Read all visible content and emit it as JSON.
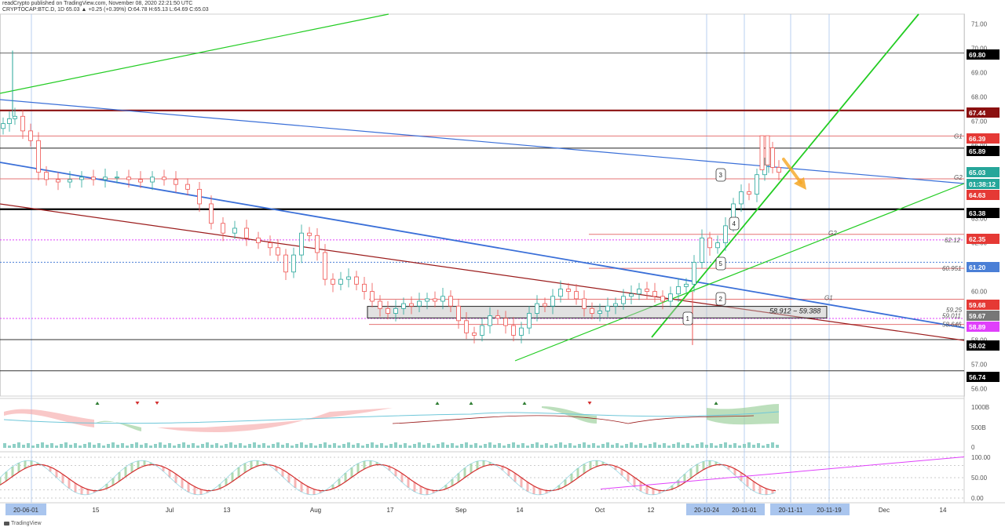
{
  "header": {
    "line1": "readCrypto published on TradingView.com, November 08, 2020 22:21:50 UTC",
    "line2": "CRYPTOCAP:BTC.D, 1D 65.03 ▲ +0.25 (+0.39%) O:64.78 H:65.13 L:64.69 C:65.03"
  },
  "footer": {
    "logo_text": "TradingView"
  },
  "chart_data": {
    "type": "candlestick",
    "y_axis": {
      "range": [
        55.7,
        71.4
      ],
      "ticks": [
        "56.00",
        "57.00",
        "58.00",
        "59.00",
        "60.00",
        "61.00",
        "62.00",
        "63.00",
        "64.00",
        "65.00",
        "66.00",
        "67.00",
        "68.00",
        "69.00",
        "70.00",
        "71.00"
      ]
    },
    "x_axis": {
      "ticks": [
        {
          "label": "20-06-01",
          "highlight": true
        },
        {
          "label": "15",
          "highlight": false
        },
        {
          "label": "Jul",
          "highlight": false
        },
        {
          "label": "13",
          "highlight": false
        },
        {
          "label": "Aug",
          "highlight": false
        },
        {
          "label": "17",
          "highlight": false
        },
        {
          "label": "Sep",
          "highlight": false
        },
        {
          "label": "14",
          "highlight": false
        },
        {
          "label": "Oct",
          "highlight": false
        },
        {
          "label": "12",
          "highlight": false
        },
        {
          "label": "20-10-24",
          "highlight": true
        },
        {
          "label": "20-11-01",
          "highlight": true
        },
        {
          "label": "20-11-11",
          "highlight": true
        },
        {
          "label": "20-11-19",
          "highlight": true
        },
        {
          "label": "Dec",
          "highlight": false
        },
        {
          "label": "14",
          "highlight": false
        }
      ]
    },
    "price_tags": [
      {
        "value": "69.80",
        "color": "#000000"
      },
      {
        "value": "67.44",
        "color": "#8b1010"
      },
      {
        "value": "66.39",
        "color": "#e53935"
      },
      {
        "value": "65.89",
        "color": "#000000"
      },
      {
        "value": "65.03",
        "color": "#26a69a"
      },
      {
        "value": "01:38:12",
        "color": "#26a69a"
      },
      {
        "value": "64.63",
        "color": "#e53935"
      },
      {
        "value": "63.38",
        "color": "#000000"
      },
      {
        "value": "62.35",
        "color": "#e53935"
      },
      {
        "value": "61.20",
        "color": "#4a7fd6"
      },
      {
        "value": "59.68",
        "color": "#e53935"
      },
      {
        "value": "59.67",
        "color": "#777777"
      },
      {
        "value": "58.89",
        "color": "#e040fb"
      },
      {
        "value": "58.02",
        "color": "#000000"
      },
      {
        "value": "56.74",
        "color": "#000000"
      }
    ],
    "horizontal_levels": [
      {
        "value": 69.8,
        "color": "#666666",
        "style": "solid"
      },
      {
        "value": 67.44,
        "color": "#8b1010",
        "style": "thick"
      },
      {
        "value": 66.39,
        "color": "#e57373",
        "style": "solid"
      },
      {
        "value": 65.89,
        "color": "#222222",
        "style": "solid"
      },
      {
        "value": 64.63,
        "color": "#e57373",
        "style": "solid"
      },
      {
        "value": 63.38,
        "color": "#000000",
        "style": "thick"
      },
      {
        "value": 62.35,
        "color": "#e57373",
        "style": "solid"
      },
      {
        "value": 62.12,
        "color": "#e040fb",
        "style": "dotted"
      },
      {
        "value": 61.2,
        "color": "#4a7fd6",
        "style": "dotted"
      },
      {
        "value": 60.951,
        "color": "#e57373",
        "style": "solid"
      },
      {
        "value": 59.68,
        "color": "#e57373",
        "style": "solid"
      },
      {
        "value": 58.89,
        "color": "#e040fb",
        "style": "dotted"
      },
      {
        "value": 58.646,
        "color": "#e57373",
        "style": "solid"
      },
      {
        "value": 58.02,
        "color": "#333333",
        "style": "solid"
      },
      {
        "value": 56.74,
        "color": "#333333",
        "style": "solid"
      }
    ],
    "level_labels": [
      {
        "text": "G1",
        "value": 66.39
      },
      {
        "text": "G2",
        "value": 64.7
      },
      {
        "text": "62.12",
        "value": 62.12
      },
      {
        "text": "G2",
        "value": 62.4
      },
      {
        "text": "60.951",
        "value": 60.951
      },
      {
        "text": "G1",
        "value": 59.75
      },
      {
        "text": "59.25",
        "value": 59.25
      },
      {
        "text": "59.011",
        "value": 59.011
      },
      {
        "text": "58.646",
        "value": 58.646
      }
    ],
    "zone": {
      "label": "58.912 ~ 59.388",
      "low": 58.912,
      "high": 59.388
    },
    "wave_labels": [
      "1",
      "2",
      "3",
      "4",
      "5"
    ],
    "indicator_axis": {
      "ticks": [
        "1000B",
        "500B",
        "0"
      ]
    },
    "oscillator_axis": {
      "ticks": [
        "100.00",
        "50.00",
        "0.00"
      ]
    },
    "colors": {
      "up": "#26a69a",
      "down": "#ef5350",
      "trend_green": "#22cc22",
      "trend_blue": "#3a6fd8",
      "trend_red": "#9b1c1c",
      "arrow": "#f5a623",
      "magenta": "#e040fb"
    }
  }
}
